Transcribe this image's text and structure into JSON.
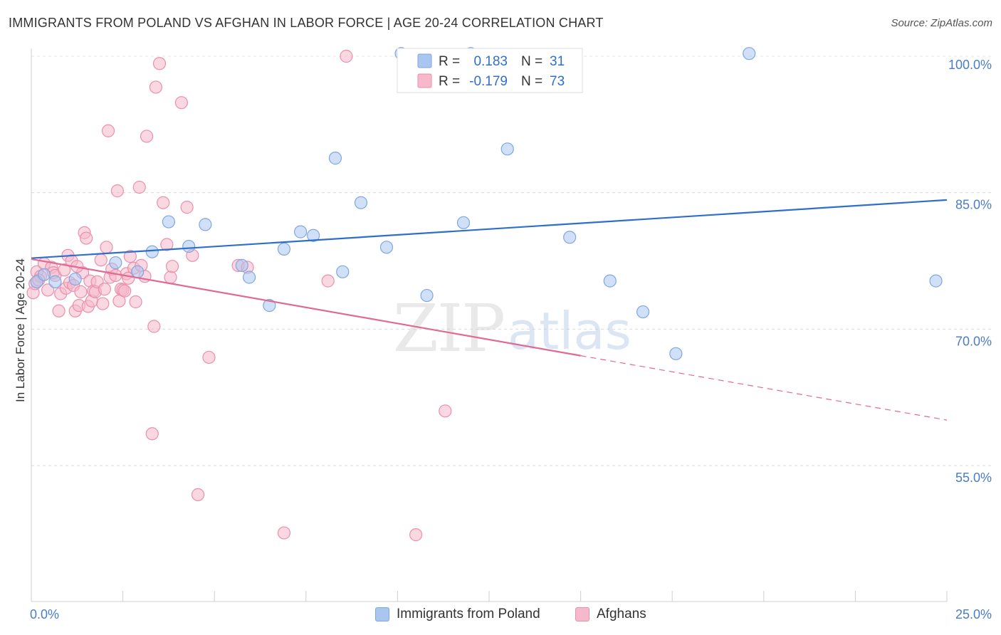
{
  "header": {
    "title": "IMMIGRANTS FROM POLAND VS AFGHAN IN LABOR FORCE | AGE 20-24 CORRELATION CHART",
    "source": "Source: ZipAtlas.com"
  },
  "watermark": {
    "zip": "ZIP",
    "atlas": "atlas"
  },
  "legend": {
    "rows": [
      {
        "r_label": "R =",
        "r_value": "0.183",
        "n_label": "N =",
        "n_value": "31"
      },
      {
        "r_label": "R =",
        "r_value": "-0.179",
        "n_label": "N =",
        "n_value": "73"
      }
    ]
  },
  "bottom_legend": {
    "items": [
      {
        "label": "Immigrants from Poland"
      },
      {
        "label": "Afghans"
      }
    ]
  },
  "colors": {
    "poland_fill": "#a9c6f0",
    "poland_stroke": "#7fa7e0",
    "poland_line": "#2f6fcc",
    "afghan_fill": "#f6b8cb",
    "afghan_stroke": "#eb8fad",
    "afghan_line": "#e06a94",
    "tick": "#4a7cc9"
  },
  "chart_data": {
    "type": "scatter",
    "title": "IMMIGRANTS FROM POLAND VS AFGHAN IN LABOR FORCE | AGE 20-24 CORRELATION CHART",
    "ylabel": "In Labor Force | Age 20-24",
    "xlabel": "",
    "xlim": [
      0,
      25
    ],
    "ylim": [
      40,
      101.5
    ],
    "x_tick_labels": [
      {
        "value": 0,
        "label": "0.0%"
      },
      {
        "value": 25,
        "label": "25.0%"
      }
    ],
    "y_tick_labels": [
      {
        "value": 55,
        "label": "55.0%"
      },
      {
        "value": 70,
        "label": "70.0%"
      },
      {
        "value": 85,
        "label": "85.0%"
      },
      {
        "value": 100,
        "label": "100.0%"
      }
    ],
    "grid": true,
    "series": [
      {
        "name": "Immigrants from Poland",
        "R": 0.183,
        "N": 31,
        "trend": {
          "x": [
            0,
            25
          ],
          "y": [
            77.8,
            84.2
          ],
          "dashed_from": null
        },
        "points": [
          [
            0.15,
            75.2
          ],
          [
            0.35,
            76.0
          ],
          [
            0.65,
            75.2
          ],
          [
            1.2,
            75.5
          ],
          [
            2.3,
            77.3
          ],
          [
            2.9,
            76.3
          ],
          [
            3.3,
            78.5
          ],
          [
            3.75,
            81.8
          ],
          [
            4.3,
            79.1
          ],
          [
            4.75,
            81.5
          ],
          [
            5.75,
            77.0
          ],
          [
            5.95,
            75.7
          ],
          [
            6.5,
            72.6
          ],
          [
            6.9,
            78.8
          ],
          [
            7.35,
            80.7
          ],
          [
            7.7,
            80.3
          ],
          [
            8.3,
            88.8
          ],
          [
            8.5,
            76.3
          ],
          [
            9.0,
            83.9
          ],
          [
            9.7,
            79.0
          ],
          [
            10.1,
            100.3
          ],
          [
            10.8,
            73.7
          ],
          [
            11.8,
            81.7
          ],
          [
            12.0,
            100.3
          ],
          [
            13.0,
            89.8
          ],
          [
            14.7,
            80.1
          ],
          [
            15.8,
            75.3
          ],
          [
            16.7,
            71.9
          ],
          [
            17.6,
            67.3
          ],
          [
            19.6,
            100.3
          ],
          [
            24.7,
            75.3
          ]
        ]
      },
      {
        "name": "Afghans",
        "R": -0.179,
        "N": 73,
        "trend": {
          "x": [
            0,
            25
          ],
          "y": [
            77.7,
            60.0
          ],
          "dashed_from": 15.0
        },
        "points": [
          [
            0.05,
            74.0
          ],
          [
            0.1,
            75.0
          ],
          [
            0.15,
            76.3
          ],
          [
            0.25,
            75.8
          ],
          [
            0.35,
            77.2
          ],
          [
            0.45,
            74.3
          ],
          [
            0.55,
            76.8
          ],
          [
            0.6,
            76.2
          ],
          [
            0.65,
            75.9
          ],
          [
            0.75,
            72.0
          ],
          [
            0.8,
            73.9
          ],
          [
            0.9,
            76.5
          ],
          [
            0.95,
            74.5
          ],
          [
            1.0,
            78.1
          ],
          [
            1.05,
            75.1
          ],
          [
            1.1,
            77.5
          ],
          [
            1.15,
            74.8
          ],
          [
            1.2,
            72.0
          ],
          [
            1.3,
            72.6
          ],
          [
            1.35,
            74.1
          ],
          [
            1.4,
            76.2
          ],
          [
            1.45,
            80.6
          ],
          [
            1.5,
            80.0
          ],
          [
            1.55,
            72.5
          ],
          [
            1.6,
            75.3
          ],
          [
            1.65,
            73.1
          ],
          [
            1.7,
            74.2
          ],
          [
            1.75,
            74.1
          ],
          [
            1.8,
            75.2
          ],
          [
            1.9,
            77.6
          ],
          [
            1.95,
            72.8
          ],
          [
            2.0,
            74.4
          ],
          [
            2.05,
            79.0
          ],
          [
            2.1,
            91.8
          ],
          [
            2.15,
            75.7
          ],
          [
            2.2,
            76.6
          ],
          [
            2.3,
            75.9
          ],
          [
            2.35,
            85.2
          ],
          [
            2.4,
            73.1
          ],
          [
            2.45,
            74.4
          ],
          [
            2.5,
            74.3
          ],
          [
            2.6,
            76.1
          ],
          [
            2.65,
            75.6
          ],
          [
            2.7,
            78.0
          ],
          [
            2.8,
            76.7
          ],
          [
            2.85,
            73.0
          ],
          [
            2.95,
            85.6
          ],
          [
            3.0,
            77.0
          ],
          [
            3.1,
            75.8
          ],
          [
            3.15,
            91.2
          ],
          [
            3.3,
            58.5
          ],
          [
            3.35,
            70.3
          ],
          [
            3.4,
            96.6
          ],
          [
            3.5,
            99.2
          ],
          [
            3.6,
            83.9
          ],
          [
            3.7,
            79.3
          ],
          [
            3.8,
            75.7
          ],
          [
            3.85,
            76.9
          ],
          [
            4.1,
            94.9
          ],
          [
            4.25,
            83.4
          ],
          [
            4.4,
            78.1
          ],
          [
            4.55,
            51.8
          ],
          [
            4.85,
            66.9
          ],
          [
            5.65,
            77.0
          ],
          [
            5.9,
            76.8
          ],
          [
            6.9,
            47.6
          ],
          [
            8.1,
            75.3
          ],
          [
            8.6,
            100.0
          ],
          [
            10.5,
            47.4
          ],
          [
            11.3,
            61.0
          ],
          [
            0.2,
            75.4
          ],
          [
            1.25,
            76.9
          ],
          [
            2.55,
            74.2
          ]
        ]
      }
    ]
  }
}
